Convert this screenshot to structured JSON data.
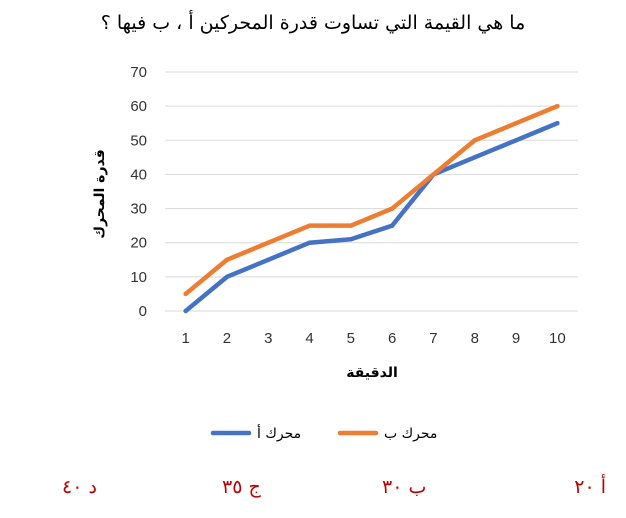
{
  "question": "ما هي القيمة التي تساوت قدرة المحركين أ ، ب فيها ؟",
  "options": {
    "a": "أ ٢٠",
    "b": "ب ٣٠",
    "c": "ج ٣٥",
    "d": "د ٤٠"
  },
  "chart_data": {
    "type": "line",
    "title": "",
    "xlabel": "الدقيقة",
    "ylabel": "قدرة المحرك",
    "categories": [
      "1",
      "2",
      "3",
      "4",
      "5",
      "6",
      "7",
      "8",
      "9",
      "10"
    ],
    "x": [
      1,
      2,
      3,
      4,
      5,
      6,
      7,
      8,
      9,
      10
    ],
    "ylim": [
      0,
      70
    ],
    "yticks": [
      0,
      10,
      20,
      30,
      40,
      50,
      60,
      70
    ],
    "grid": true,
    "legend_position": "bottom",
    "series": [
      {
        "name": "محرك أ",
        "color": "#4472c4",
        "values": [
          0,
          10,
          15,
          20,
          21,
          25,
          40,
          45,
          50,
          55
        ]
      },
      {
        "name": "محرك ب",
        "color": "#ed7d31",
        "values": [
          5,
          15,
          20,
          25,
          25,
          30,
          40,
          50,
          55,
          60
        ]
      }
    ]
  }
}
